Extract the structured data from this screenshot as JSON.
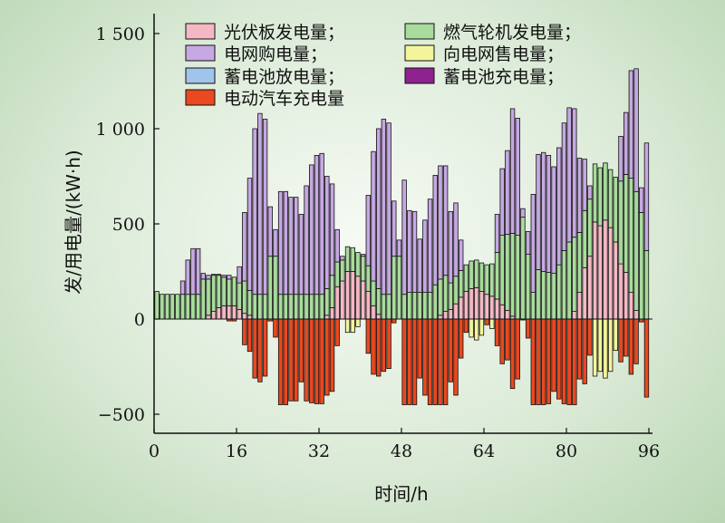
{
  "chart_data": {
    "type": "bar",
    "stacked": true,
    "xlabel": "时间/h",
    "ylabel": "发/用电量/(kW·h)",
    "xlim": [
      0,
      96
    ],
    "ylim": [
      -600,
      1600
    ],
    "xticks": [
      "0",
      "16",
      "32",
      "48",
      "64",
      "80",
      "96"
    ],
    "xtick_values": [
      0,
      16,
      32,
      48,
      64,
      80,
      96
    ],
    "yticks": [
      "1 500",
      "1 000",
      "500",
      "0",
      "−500"
    ],
    "ytick_values": [
      1500,
      1000,
      500,
      0,
      -500
    ],
    "legend_position": "top",
    "legend": [
      {
        "key": "pv",
        "label": "光伏板发电量；",
        "color": "#f4b8c4"
      },
      {
        "key": "gas",
        "label": "燃气轮机发电量；",
        "color": "#a8dc9c"
      },
      {
        "key": "buy",
        "label": "电网购电量；",
        "color": "#c6a8e2"
      },
      {
        "key": "sell",
        "label": "向电网售电量；",
        "color": "#f4f49c"
      },
      {
        "key": "bat_dis",
        "label": "蓄电池放电量；",
        "color": "#a0c4ea"
      },
      {
        "key": "bat_ch",
        "label": "蓄电池充电量；",
        "color": "#8e2290"
      },
      {
        "key": "ev",
        "label": "电动汽车充电量",
        "color": "#ea4820"
      }
    ],
    "series_format": "rows of [pv, gas_top(pv+gas), total_top(pv+gas+buy), ev(negative), sell(negative)] per hour 0..95",
    "rows": [
      [
        0,
        145,
        145,
        0,
        0
      ],
      [
        0,
        130,
        130,
        0,
        0
      ],
      [
        0,
        130,
        130,
        0,
        0
      ],
      [
        0,
        130,
        130,
        0,
        0
      ],
      [
        0,
        130,
        130,
        0,
        0
      ],
      [
        0,
        130,
        200,
        0,
        0
      ],
      [
        0,
        130,
        310,
        0,
        0
      ],
      [
        0,
        130,
        370,
        0,
        0
      ],
      [
        0,
        130,
        370,
        0,
        0
      ],
      [
        0,
        210,
        240,
        0,
        0
      ],
      [
        20,
        210,
        230,
        0,
        0
      ],
      [
        40,
        230,
        235,
        0,
        0
      ],
      [
        60,
        230,
        235,
        0,
        0
      ],
      [
        70,
        220,
        230,
        0,
        0
      ],
      [
        70,
        210,
        230,
        -10,
        0
      ],
      [
        70,
        220,
        220,
        -10,
        0
      ],
      [
        50,
        190,
        275,
        0,
        0
      ],
      [
        30,
        200,
        560,
        -135,
        0
      ],
      [
        20,
        150,
        740,
        -170,
        0
      ],
      [
        0,
        130,
        1000,
        -310,
        0
      ],
      [
        0,
        130,
        1080,
        -330,
        0
      ],
      [
        0,
        130,
        1050,
        -300,
        0
      ],
      [
        0,
        330,
        590,
        -10,
        0
      ],
      [
        0,
        330,
        470,
        -95,
        0
      ],
      [
        0,
        130,
        670,
        -450,
        0
      ],
      [
        0,
        130,
        670,
        -450,
        0
      ],
      [
        0,
        130,
        640,
        -430,
        0
      ],
      [
        0,
        130,
        640,
        -430,
        0
      ],
      [
        0,
        130,
        550,
        -330,
        0
      ],
      [
        0,
        130,
        700,
        -430,
        0
      ],
      [
        0,
        130,
        810,
        -440,
        0
      ],
      [
        0,
        130,
        860,
        -445,
        0
      ],
      [
        0,
        130,
        870,
        -445,
        0
      ],
      [
        20,
        160,
        750,
        -400,
        0
      ],
      [
        60,
        230,
        710,
        -380,
        0
      ],
      [
        170,
        300,
        470,
        -140,
        0
      ],
      [
        200,
        310,
        330,
        0,
        0
      ],
      [
        250,
        380,
        380,
        0,
        -70
      ],
      [
        250,
        375,
        375,
        0,
        -70
      ],
      [
        225,
        350,
        350,
        0,
        -40
      ],
      [
        200,
        330,
        340,
        0,
        0
      ],
      [
        145,
        280,
        650,
        -180,
        0
      ],
      [
        70,
        200,
        880,
        -290,
        0
      ],
      [
        25,
        160,
        1000,
        -300,
        0
      ],
      [
        0,
        130,
        1050,
        -275,
        0
      ],
      [
        0,
        130,
        1030,
        -260,
        0
      ],
      [
        0,
        330,
        620,
        -20,
        0
      ],
      [
        0,
        330,
        415,
        0,
        0
      ],
      [
        0,
        130,
        730,
        -450,
        0
      ],
      [
        0,
        140,
        570,
        -450,
        0
      ],
      [
        0,
        140,
        565,
        -450,
        0
      ],
      [
        0,
        140,
        420,
        -310,
        0
      ],
      [
        0,
        140,
        520,
        -400,
        0
      ],
      [
        0,
        140,
        630,
        -450,
        0
      ],
      [
        0,
        180,
        755,
        -450,
        0
      ],
      [
        20,
        210,
        805,
        -450,
        0
      ],
      [
        40,
        230,
        805,
        -450,
        0
      ],
      [
        50,
        190,
        565,
        -330,
        0
      ],
      [
        80,
        225,
        610,
        -400,
        0
      ],
      [
        115,
        255,
        415,
        -205,
        0
      ],
      [
        145,
        285,
        285,
        -70,
        0
      ],
      [
        160,
        305,
        305,
        0,
        -95
      ],
      [
        165,
        310,
        310,
        0,
        -110
      ],
      [
        145,
        295,
        295,
        0,
        -85
      ],
      [
        130,
        285,
        285,
        -30,
        0
      ],
      [
        120,
        290,
        290,
        0,
        -50
      ],
      [
        105,
        350,
        550,
        -140,
        0
      ],
      [
        75,
        440,
        790,
        -235,
        0
      ],
      [
        45,
        445,
        885,
        -215,
        0
      ],
      [
        15,
        450,
        1105,
        -365,
        0
      ],
      [
        0,
        440,
        1055,
        -315,
        0
      ],
      [
        0,
        535,
        580,
        -5,
        0
      ],
      [
        0,
        340,
        460,
        -100,
        0
      ],
      [
        0,
        140,
        655,
        -450,
        0
      ],
      [
        0,
        260,
        865,
        -450,
        0
      ],
      [
        0,
        250,
        875,
        -450,
        0
      ],
      [
        0,
        245,
        860,
        -445,
        0
      ],
      [
        0,
        240,
        800,
        -380,
        0
      ],
      [
        0,
        285,
        900,
        -420,
        0
      ],
      [
        0,
        360,
        1030,
        -445,
        0
      ],
      [
        0,
        405,
        1110,
        -450,
        0
      ],
      [
        40,
        430,
        1105,
        -450,
        0
      ],
      [
        140,
        455,
        845,
        -315,
        0
      ],
      [
        270,
        570,
        840,
        -340,
        0
      ],
      [
        330,
        630,
        700,
        -190,
        0
      ],
      [
        510,
        815,
        815,
        0,
        -300
      ],
      [
        490,
        795,
        795,
        0,
        -275
      ],
      [
        520,
        820,
        820,
        0,
        -310
      ],
      [
        480,
        785,
        785,
        0,
        -275
      ],
      [
        405,
        745,
        745,
        0,
        -165
      ],
      [
        290,
        725,
        960,
        -225,
        0
      ],
      [
        245,
        760,
        1085,
        -195,
        0
      ],
      [
        140,
        740,
        1305,
        -290,
        0
      ],
      [
        45,
        670,
        1315,
        -235,
        0
      ],
      [
        0,
        560,
        690,
        -15,
        0
      ],
      [
        0,
        360,
        925,
        -410,
        0
      ]
    ]
  }
}
